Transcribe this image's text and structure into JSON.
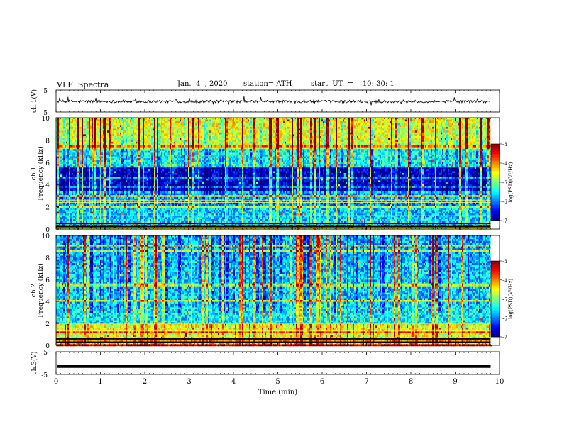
{
  "header": {
    "title": "VLF  Spectra",
    "date": "Jan.  4  , 2020",
    "station": "station= ATH",
    "start": "start  UT  =    10: 30: 1"
  },
  "chart_data": [
    {
      "type": "line",
      "name": "ch1-waveform",
      "ylabel": "ch.1(V)",
      "yticks": [
        "5",
        "-5"
      ],
      "ylim": [
        -5,
        5
      ]
    },
    {
      "type": "heatmap",
      "name": "ch1-spectrogram",
      "ylabel_channel": "ch.1",
      "ylabel": "Frequency  (kHz)",
      "yticks": [
        "0",
        "2",
        "4",
        "6",
        "8",
        "10"
      ],
      "ylim": [
        0,
        10
      ],
      "colorbar": {
        "label": "log(PSD)(V²/Hz)",
        "ticks": [
          "-3",
          "-4",
          "-5",
          "-6",
          "-7"
        ],
        "range": [
          -7,
          -3
        ]
      }
    },
    {
      "type": "heatmap",
      "name": "ch2-spectrogram",
      "ylabel_channel": "ch.2",
      "ylabel": "Frequency  (kHz)",
      "yticks": [
        "0",
        "2",
        "4",
        "6",
        "8",
        "10"
      ],
      "ylim": [
        0,
        10
      ],
      "colorbar": {
        "label": "log(PSD)(V²/Hz)",
        "ticks": [
          "-3",
          "-4",
          "-5",
          "-6",
          "-7"
        ],
        "range": [
          -7,
          -3
        ]
      }
    },
    {
      "type": "line",
      "name": "ch3-waveform",
      "ylabel": "ch.3(V)",
      "yticks": [
        "5",
        "-5"
      ],
      "ylim": [
        -5,
        5
      ],
      "value": -1.5
    }
  ],
  "xaxis": {
    "label": "Time  (min)",
    "ticks": [
      "0",
      "1",
      "2",
      "3",
      "4",
      "5",
      "6",
      "7",
      "8",
      "9",
      "10"
    ],
    "xlim": [
      0,
      10
    ],
    "data_end": 9.8
  }
}
